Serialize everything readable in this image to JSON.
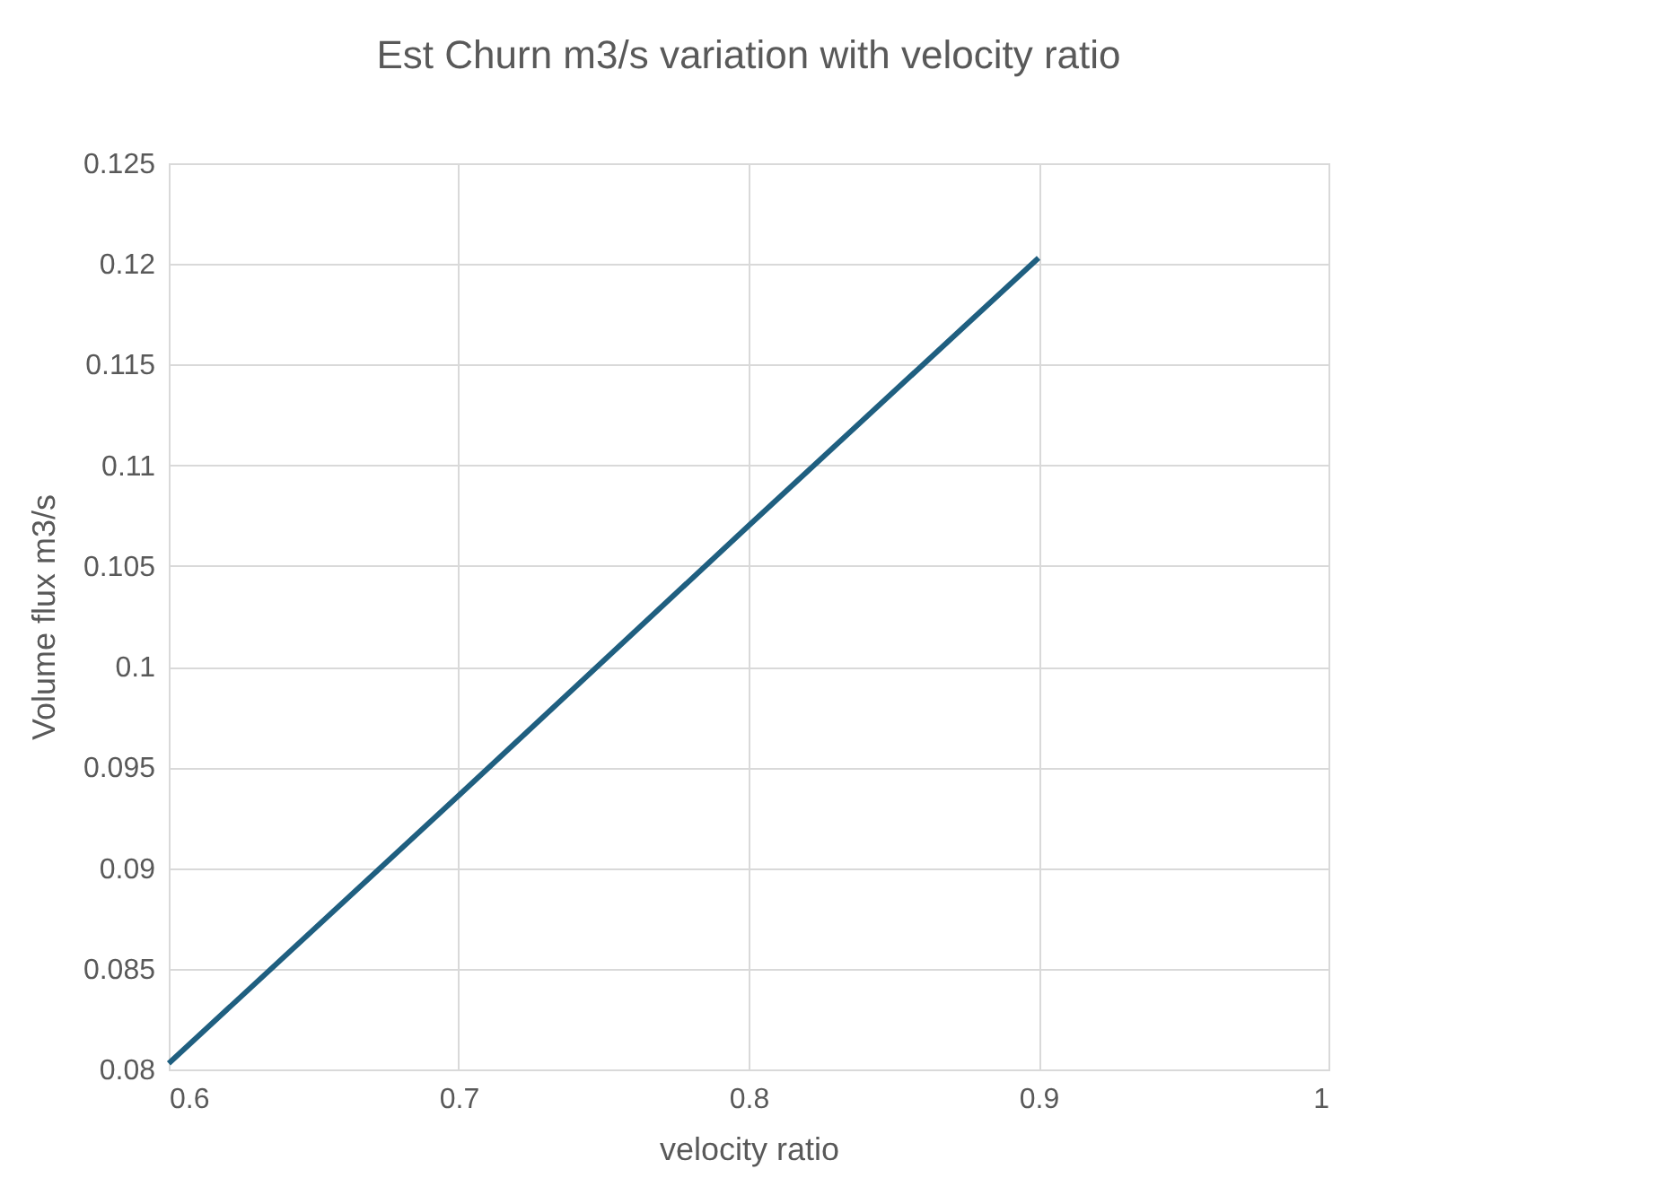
{
  "chart_data": {
    "type": "line",
    "title": "Est Churn m3/s variation with velocity ratio",
    "xlabel": "velocity ratio",
    "ylabel": "Volume flux  m3/s",
    "x": [
      0.6,
      0.7,
      0.8,
      0.9
    ],
    "series": [
      {
        "color": "#1f5f80",
        "values": [
          0.0803,
          0.0936,
          0.107,
          0.1203
        ]
      }
    ],
    "xlim": [
      0.6,
      1
    ],
    "xticks": [
      0.6,
      0.7,
      0.8,
      0.9,
      1
    ],
    "ylim": [
      0.08,
      0.125
    ],
    "yticks": [
      0.08,
      0.085,
      0.09,
      0.095,
      0.1,
      0.105,
      0.11,
      0.115,
      0.12,
      0.125
    ],
    "grid": true,
    "marker": "none",
    "line_style": "solid"
  }
}
